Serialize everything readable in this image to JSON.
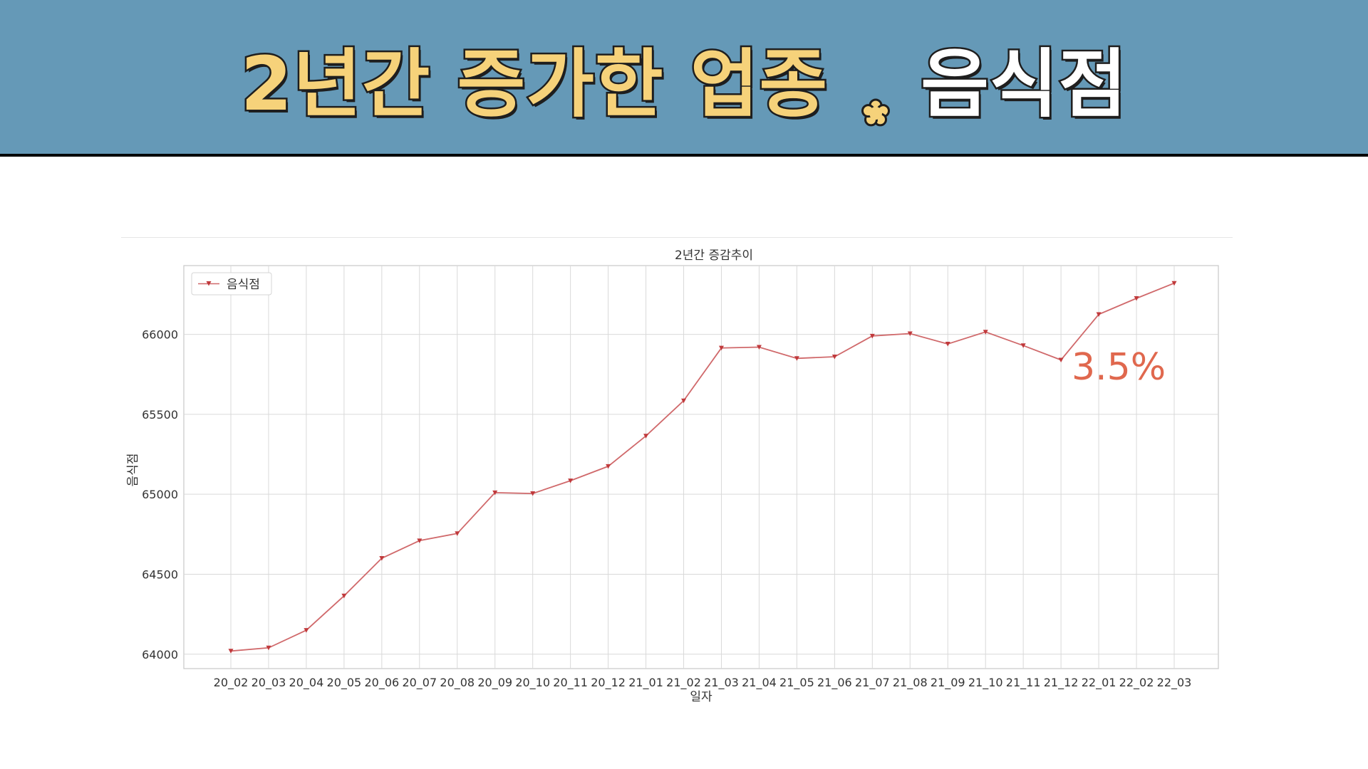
{
  "header": {
    "title_left": "2년간 증가한 업종",
    "title_right": "음식점",
    "separator_icon": "flower-icon",
    "colors": {
      "banner": "#6599b7",
      "title_left": "#f6d27a",
      "title_right": "#ffffff",
      "separator": "#f6d27a"
    }
  },
  "annotation": {
    "text": "3.5%",
    "color": "#e0684e"
  },
  "chart_data": {
    "type": "line",
    "title": "2년간 증감추이",
    "xlabel": "일자",
    "ylabel": "음식점",
    "categories": [
      "20_02",
      "20_03",
      "20_04",
      "20_05",
      "20_06",
      "20_07",
      "20_08",
      "20_09",
      "20_10",
      "20_11",
      "20_12",
      "21_01",
      "21_02",
      "21_03",
      "21_04",
      "21_05",
      "21_06",
      "21_07",
      "21_08",
      "21_09",
      "21_10",
      "21_11",
      "21_12",
      "22_01",
      "22_02",
      "22_03"
    ],
    "series": [
      {
        "name": "음식점",
        "color": "#d0696b",
        "marker": "triangle-down",
        "values": [
          64020,
          64040,
          64150,
          64365,
          64600,
          64710,
          64755,
          65010,
          65005,
          65085,
          65175,
          65365,
          65585,
          65915,
          65920,
          65850,
          65860,
          65990,
          66005,
          65940,
          66015,
          65930,
          65840,
          66125,
          66225,
          66320
        ]
      }
    ],
    "yticks": [
      64000,
      64500,
      65000,
      65500,
      66000
    ],
    "ylim": [
      63910,
      66430
    ],
    "grid": true,
    "legend_position": "top-left"
  }
}
